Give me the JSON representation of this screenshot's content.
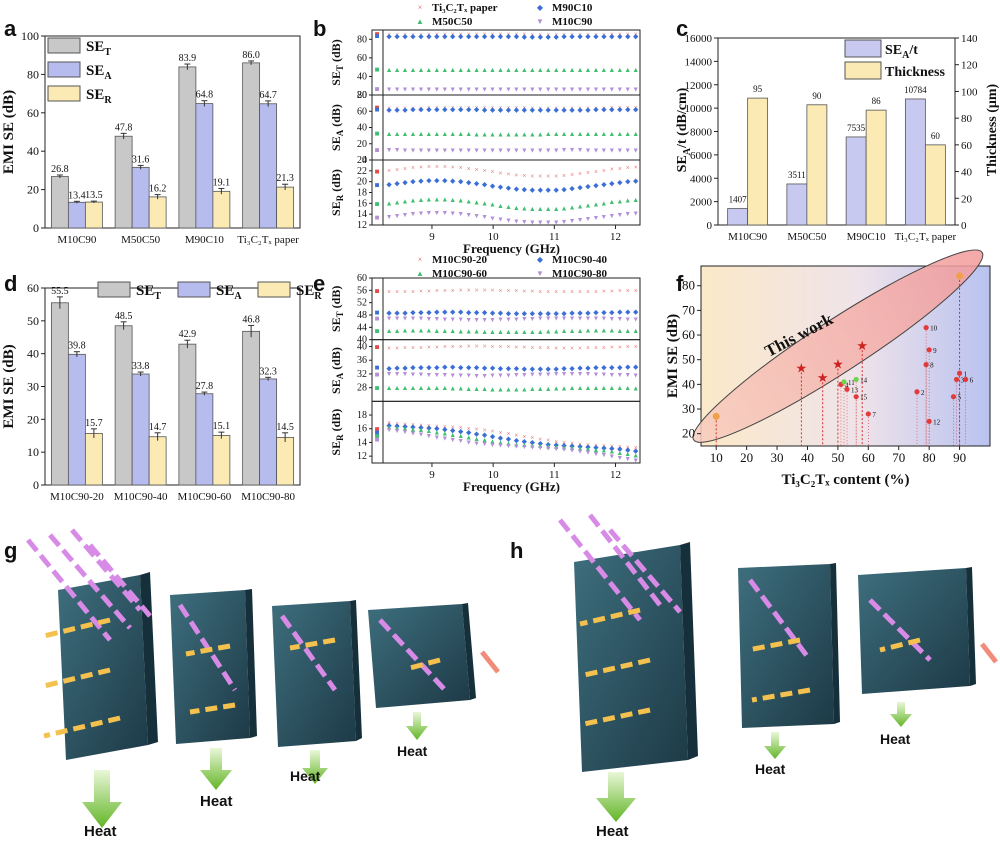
{
  "panels": {
    "a": "a",
    "b": "b",
    "c": "c",
    "d": "d",
    "e": "e",
    "f": "f",
    "g": "g",
    "h": "h"
  },
  "colors": {
    "set": "#c8c8c8",
    "sea": "#b7bcef",
    "ser": "#fbeab3",
    "thick": "#fbeab3",
    "seat": "#c7c9f0",
    "red": "#e34a4a",
    "blue": "#3b6fd6",
    "green": "#3fbf6f",
    "violet": "#b48fd8"
  },
  "chart_data": [
    {
      "id": "a",
      "type": "bar",
      "ylabel": "EMI SE (dB)",
      "ylim": [
        0,
        100
      ],
      "yticks": [
        "0",
        "20",
        "40",
        "60",
        "80",
        "100"
      ],
      "categories": [
        "M10C90",
        "M50C50",
        "M90C10",
        "Ti₃C₂Tₓ paper"
      ],
      "series": [
        {
          "name": "SE_T",
          "legend": "SE",
          "sub": "T",
          "values": [
            26.8,
            47.8,
            83.9,
            86.0
          ],
          "labels": [
            "26.8",
            "47.8",
            "83.9",
            "86.0"
          ],
          "errors": [
            0.8,
            1.5,
            1.5,
            1.0
          ]
        },
        {
          "name": "SE_A",
          "legend": "SE",
          "sub": "A",
          "values": [
            13.4,
            31.6,
            64.8,
            64.7
          ],
          "labels": [
            "13.4",
            "31.6",
            "64.8",
            "64.7"
          ],
          "errors": [
            0.5,
            1.0,
            1.5,
            1.5
          ]
        },
        {
          "name": "SE_R",
          "legend": "SE",
          "sub": "R",
          "values": [
            13.5,
            16.2,
            19.1,
            21.3
          ],
          "labels": [
            "13.5",
            "16.2",
            "19.1",
            "21.3"
          ],
          "errors": [
            0.5,
            1.2,
            1.5,
            1.5
          ]
        }
      ]
    },
    {
      "id": "b",
      "type": "scatter",
      "xlabel": "Frequency (GHz)",
      "xlim": [
        8.2,
        12.4
      ],
      "xticks": [
        "9",
        "10",
        "11",
        "12"
      ],
      "legend": [
        "Ti₃C₂Tₓ paper",
        "M90C10",
        "M50C50",
        "M10C90"
      ],
      "subplots": [
        {
          "ylabel": "SE",
          "ysub": "T",
          "yunit": " (dB)",
          "ylim": [
            20,
            90
          ],
          "yticks": [
            "20",
            "40",
            "60",
            "80"
          ],
          "series": [
            86,
            84,
            48,
            27
          ]
        },
        {
          "ylabel": "SE",
          "ysub": "A",
          "yunit": " (dB)",
          "ylim": [
            0,
            80
          ],
          "yticks": [
            "0",
            "20",
            "40",
            "60",
            "80"
          ],
          "series": [
            65,
            63,
            33,
            13
          ]
        },
        {
          "ylabel": "SE",
          "ysub": "R",
          "yunit": " (dB)",
          "ylim": [
            12,
            24
          ],
          "yticks": [
            "12",
            "14",
            "16",
            "18",
            "20",
            "22",
            "24"
          ],
          "series": [
            22,
            19.5,
            16,
            13.5
          ]
        }
      ]
    },
    {
      "id": "c",
      "type": "bar",
      "ylabel": "SE",
      "ysub": "A",
      "yunit": "/t (dB/cm)",
      "y2label": "Thickness (μm)",
      "ylim": [
        0,
        16000
      ],
      "y2lim": [
        0,
        140
      ],
      "yticks": [
        "0",
        "2000",
        "4000",
        "6000",
        "8000",
        "10000",
        "12000",
        "14000",
        "16000"
      ],
      "y2ticks": [
        "0",
        "20",
        "40",
        "60",
        "80",
        "100",
        "120",
        "140"
      ],
      "categories": [
        "M10C90",
        "M50C50",
        "M90C10",
        "Ti₃C₂Tₓ paper"
      ],
      "series": [
        {
          "name": "SE_A/t",
          "legend": "SE",
          "sub": "A",
          "tail": "/t",
          "values": [
            1407,
            3511,
            7535,
            10784
          ],
          "labels": [
            "1407",
            "3511",
            "7535",
            "10784"
          ]
        },
        {
          "name": "Thickness",
          "legend": "Thickness",
          "values": [
            95,
            90,
            86,
            60
          ],
          "labels": [
            "95",
            "90",
            "86",
            "60"
          ]
        }
      ]
    },
    {
      "id": "d",
      "type": "bar",
      "ylabel": "EMI SE (dB)",
      "ylim": [
        0,
        60
      ],
      "yticks": [
        "0",
        "10",
        "20",
        "30",
        "40",
        "50",
        "60"
      ],
      "categories": [
        "M10C90-20",
        "M10C90-40",
        "M10C90-60",
        "M10C90-80"
      ],
      "series": [
        {
          "name": "SE_T",
          "legend": "SE",
          "sub": "T",
          "values": [
            55.5,
            48.5,
            42.9,
            46.8
          ],
          "labels": [
            "55.5",
            "48.5",
            "42.9",
            "46.8"
          ],
          "errors": [
            1.8,
            1.2,
            1.2,
            1.8
          ]
        },
        {
          "name": "SE_A",
          "legend": "SE",
          "sub": "A",
          "values": [
            39.8,
            33.8,
            27.8,
            32.3
          ],
          "labels": [
            "39.8",
            "33.8",
            "27.8",
            "32.3"
          ],
          "errors": [
            0.8,
            0.6,
            0.5,
            0.5
          ]
        },
        {
          "name": "SE_R",
          "legend": "SE",
          "sub": "R",
          "values": [
            15.7,
            14.7,
            15.1,
            14.5
          ],
          "labels": [
            "15.7",
            "14.7",
            "15.1",
            "14.5"
          ],
          "errors": [
            1.4,
            1.2,
            1.0,
            1.4
          ]
        }
      ]
    },
    {
      "id": "e",
      "type": "scatter",
      "xlabel": "Frequency (GHz)",
      "xlim": [
        8.2,
        12.4
      ],
      "xticks": [
        "9",
        "10",
        "11",
        "12"
      ],
      "legend": [
        "M10C90-20",
        "M10C90-40",
        "M10C90-60",
        "M10C90-80"
      ],
      "subplots": [
        {
          "ylabel": "SE",
          "ysub": "T",
          "yunit": " (dB)",
          "ylim": [
            40,
            60
          ],
          "yticks": [
            "40",
            "44",
            "48",
            "52",
            "56",
            "60"
          ],
          "series": [
            56,
            49,
            43,
            47
          ]
        },
        {
          "ylabel": "SE",
          "ysub": "A",
          "yunit": " (dB)",
          "ylim": [
            24,
            42
          ],
          "yticks": [
            "28",
            "32",
            "36",
            "40"
          ],
          "series": [
            40,
            34,
            28,
            32
          ]
        },
        {
          "ylabel": "SE",
          "ysub": "R",
          "yunit": " (dB)",
          "ylim": [
            11,
            20
          ],
          "yticks": [
            "12",
            "14",
            "16",
            "18"
          ],
          "series": [
            16,
            15.5,
            15,
            14.5
          ]
        }
      ]
    },
    {
      "id": "f",
      "type": "scatter",
      "xlabel": "Ti₃C₂Tₓ content (%)",
      "ylabel": "EMI SE (dB)",
      "xlim": [
        5,
        100
      ],
      "ylim": [
        15,
        88
      ],
      "xticks": [
        "10",
        "20",
        "30",
        "40",
        "50",
        "60",
        "70",
        "80",
        "90"
      ],
      "yticks": [
        "20",
        "30",
        "40",
        "50",
        "60",
        "70",
        "80"
      ],
      "annotation": "This work",
      "this_work": [
        [
          10,
          27
        ],
        [
          38,
          46.5
        ],
        [
          45,
          42.5
        ],
        [
          50,
          48
        ],
        [
          58,
          55.5
        ],
        [
          90,
          84
        ]
      ],
      "literature": [
        {
          "label": "1",
          "x": 90,
          "y": 44.5
        },
        {
          "label": "2",
          "x": 76,
          "y": 37
        },
        {
          "label": "3",
          "x": 89,
          "y": 42
        },
        {
          "label": "4",
          "x": 51,
          "y": 40
        },
        {
          "label": "5",
          "x": 88,
          "y": 35
        },
        {
          "label": "6",
          "x": 92,
          "y": 42
        },
        {
          "label": "7",
          "x": 60,
          "y": 28
        },
        {
          "label": "8",
          "x": 79,
          "y": 48
        },
        {
          "label": "9",
          "x": 80,
          "y": 54
        },
        {
          "label": "10",
          "x": 79,
          "y": 63
        },
        {
          "label": "11",
          "x": 52,
          "y": 41
        },
        {
          "label": "12",
          "x": 80,
          "y": 25
        },
        {
          "label": "13",
          "x": 53,
          "y": 38
        },
        {
          "label": "14",
          "x": 56,
          "y": 42
        },
        {
          "label": "15",
          "x": 56,
          "y": 35
        }
      ]
    }
  ],
  "diagrams": {
    "g": {
      "heat": [
        "Heat",
        "Heat",
        "Heat",
        "Heat"
      ]
    },
    "h": {
      "heat": [
        "Heat",
        "Heat",
        "Heat"
      ]
    }
  }
}
